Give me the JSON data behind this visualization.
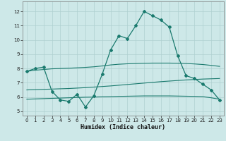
{
  "xlabel": "Humidex (Indice chaleur)",
  "background_color": "#cde8e8",
  "grid_color": "#afd0d0",
  "line_color": "#1a7a6e",
  "xlim": [
    -0.5,
    23.5
  ],
  "ylim": [
    4.7,
    12.7
  ],
  "yticks": [
    5,
    6,
    7,
    8,
    9,
    10,
    11,
    12
  ],
  "xticks": [
    0,
    1,
    2,
    3,
    4,
    5,
    6,
    7,
    8,
    9,
    10,
    11,
    12,
    13,
    14,
    15,
    16,
    17,
    18,
    19,
    20,
    21,
    22,
    23
  ],
  "s1_x": [
    0,
    1,
    2,
    3,
    4,
    5,
    6,
    7,
    8,
    9,
    10,
    11,
    12,
    13,
    14,
    15,
    16,
    17,
    18,
    19,
    20,
    21,
    22,
    23
  ],
  "s1_y": [
    7.8,
    8.0,
    8.1,
    6.4,
    5.8,
    5.7,
    6.2,
    5.3,
    6.1,
    7.6,
    9.3,
    10.3,
    10.1,
    11.0,
    12.0,
    11.7,
    11.4,
    10.9,
    8.9,
    7.5,
    7.3,
    6.9,
    6.5,
    5.8
  ],
  "s2_x": [
    0,
    1,
    2,
    3,
    4,
    5,
    6,
    7,
    8,
    9,
    10,
    11,
    12,
    13,
    14,
    15,
    16,
    17,
    18,
    19,
    20,
    21,
    22,
    23
  ],
  "s2_y": [
    7.8,
    7.88,
    7.93,
    7.98,
    8.0,
    8.02,
    8.05,
    8.08,
    8.12,
    8.18,
    8.25,
    8.3,
    8.33,
    8.35,
    8.37,
    8.38,
    8.38,
    8.38,
    8.37,
    8.35,
    8.32,
    8.28,
    8.22,
    8.15
  ],
  "s3_x": [
    0,
    1,
    2,
    3,
    4,
    5,
    6,
    7,
    8,
    9,
    10,
    11,
    12,
    13,
    14,
    15,
    16,
    17,
    18,
    19,
    20,
    21,
    22,
    23
  ],
  "s3_y": [
    6.5,
    6.52,
    6.54,
    6.56,
    6.58,
    6.6,
    6.63,
    6.66,
    6.7,
    6.74,
    6.78,
    6.83,
    6.88,
    6.93,
    6.98,
    7.03,
    7.08,
    7.12,
    7.16,
    7.2,
    7.23,
    7.26,
    7.28,
    7.3
  ],
  "s4_x": [
    0,
    1,
    2,
    3,
    4,
    5,
    6,
    7,
    8,
    9,
    10,
    11,
    12,
    13,
    14,
    15,
    16,
    17,
    18,
    19,
    20,
    21,
    22,
    23
  ],
  "s4_y": [
    5.85,
    5.87,
    5.89,
    5.91,
    5.93,
    5.95,
    5.97,
    5.99,
    6.0,
    6.02,
    6.03,
    6.05,
    6.06,
    6.07,
    6.08,
    6.08,
    6.08,
    6.08,
    6.07,
    6.06,
    6.05,
    6.03,
    5.95,
    5.85
  ]
}
